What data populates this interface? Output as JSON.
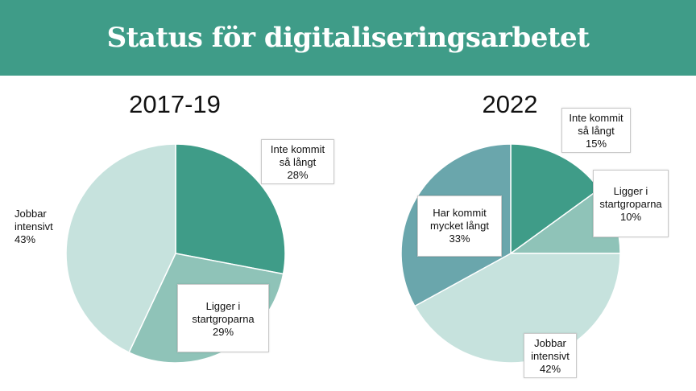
{
  "header": {
    "title": "Status för digitaliseringsarbetet"
  },
  "colors": {
    "banner": "#3f9c88",
    "inte_kommit": "#3f9c88",
    "ligger_i": "#8fc3b8",
    "jobbar": "#c6e2dd",
    "har_kommit": "#6aa6ac"
  },
  "chart_data": [
    {
      "type": "pie",
      "title": "2017-19",
      "slices": [
        {
          "label": [
            "Inte kommit",
            "så långt"
          ],
          "value": 28,
          "display": "28%",
          "color": "#3f9c88"
        },
        {
          "label": [
            "Ligger i",
            "startgroparna"
          ],
          "value": 29,
          "display": "29%",
          "color": "#8fc3b8"
        },
        {
          "label": [
            "Jobbar",
            "intensivt"
          ],
          "value": 43,
          "display": "43%",
          "color": "#c6e2dd"
        }
      ]
    },
    {
      "type": "pie",
      "title": "2022",
      "slices": [
        {
          "label": [
            "Inte kommit",
            "så långt"
          ],
          "value": 15,
          "display": "15%",
          "color": "#3f9c88"
        },
        {
          "label": [
            "Ligger i",
            "startgroparna"
          ],
          "value": 10,
          "display": "10%",
          "color": "#8fc3b8"
        },
        {
          "label": [
            "Jobbar",
            "intensivt"
          ],
          "value": 42,
          "display": "42%",
          "color": "#c6e2dd"
        },
        {
          "label": [
            "Har kommit",
            "mycket långt"
          ],
          "value": 33,
          "display": "33%",
          "color": "#6aa6ac"
        }
      ]
    }
  ]
}
